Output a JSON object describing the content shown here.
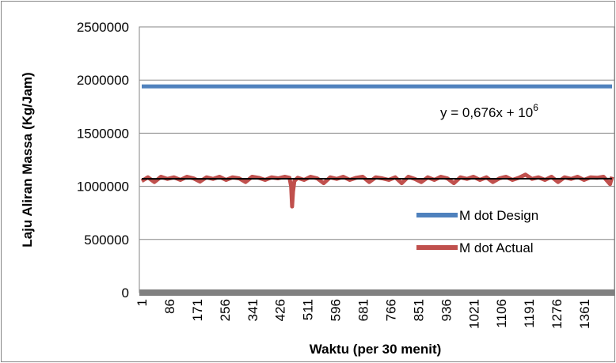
{
  "chart_data": {
    "type": "line",
    "title": "",
    "xlabel": "Waktu (per 30 menit)",
    "ylabel": "Laju Aliran Massa (Kg/Jam)",
    "ylim": [
      0,
      2500000
    ],
    "yticks": [
      "0",
      "500000",
      "1000000",
      "1500000",
      "2000000",
      "2500000"
    ],
    "xlim": [
      1,
      1446
    ],
    "xticks": [
      "1",
      "86",
      "171",
      "256",
      "341",
      "426",
      "511",
      "596",
      "681",
      "766",
      "851",
      "936",
      "1021",
      "1106",
      "1191",
      "1276",
      "1361"
    ],
    "grid": "horizontal",
    "legend_position": "right",
    "annotation": {
      "base": "y = 0,676x + 10",
      "exponent": "6"
    },
    "series": [
      {
        "name": "M dot Design",
        "color": "#4f81bd",
        "x": [
          1,
          1446
        ],
        "values": [
          1940000,
          1940000
        ]
      },
      {
        "name": "M dot Actual",
        "color": "#c0504d",
        "x": [
          1,
          20,
          40,
          60,
          80,
          100,
          120,
          140,
          160,
          180,
          200,
          220,
          240,
          260,
          280,
          300,
          320,
          340,
          360,
          380,
          400,
          420,
          440,
          455,
          460,
          463,
          466,
          470,
          480,
          500,
          520,
          540,
          560,
          580,
          600,
          620,
          640,
          660,
          680,
          700,
          720,
          740,
          760,
          780,
          800,
          820,
          840,
          860,
          880,
          900,
          920,
          940,
          960,
          980,
          1000,
          1020,
          1040,
          1060,
          1080,
          1100,
          1120,
          1140,
          1160,
          1180,
          1200,
          1220,
          1240,
          1260,
          1280,
          1300,
          1320,
          1340,
          1360,
          1380,
          1400,
          1420,
          1440,
          1446
        ],
        "values": [
          1050000,
          1085000,
          1040000,
          1090000,
          1070000,
          1085000,
          1060000,
          1090000,
          1075000,
          1045000,
          1085000,
          1070000,
          1090000,
          1060000,
          1085000,
          1075000,
          1040000,
          1090000,
          1080000,
          1060000,
          1085000,
          1075000,
          1090000,
          1080000,
          1000000,
          810000,
          950000,
          1050000,
          1080000,
          1060000,
          1090000,
          1075000,
          1030000,
          1085000,
          1070000,
          1090000,
          1060000,
          1080000,
          1090000,
          1040000,
          1085000,
          1075000,
          1060000,
          1085000,
          1030000,
          1090000,
          1070000,
          1040000,
          1085000,
          1060000,
          1090000,
          1075000,
          1030000,
          1085000,
          1070000,
          1090000,
          1060000,
          1085000,
          1040000,
          1075000,
          1090000,
          1060000,
          1080000,
          1110000,
          1070000,
          1085000,
          1060000,
          1090000,
          1040000,
          1085000,
          1070000,
          1090000,
          1060000,
          1085000,
          1080000,
          1090000,
          1020000,
          1090000
        ]
      },
      {
        "name": "",
        "color": "#000000",
        "x": [
          1,
          1446
        ],
        "values": [
          1071000,
          1072000
        ]
      }
    ]
  }
}
